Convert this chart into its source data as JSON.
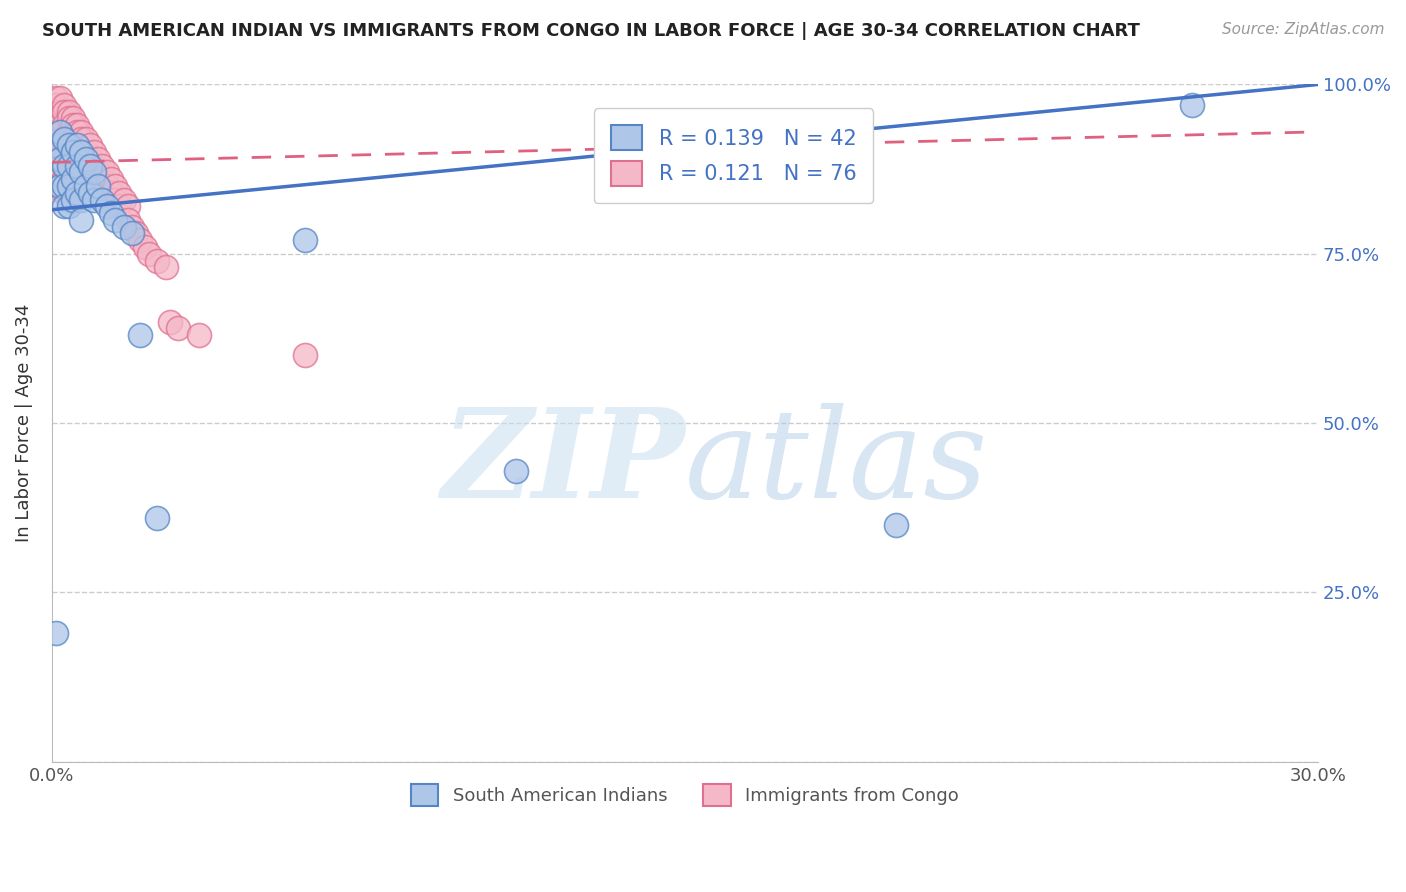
{
  "title": "SOUTH AMERICAN INDIAN VS IMMIGRANTS FROM CONGO IN LABOR FORCE | AGE 30-34 CORRELATION CHART",
  "source": "Source: ZipAtlas.com",
  "ylabel": "In Labor Force | Age 30-34",
  "xlim": [
    0.0,
    0.3
  ],
  "ylim": [
    0.0,
    1.0
  ],
  "xticks": [
    0.0,
    0.05,
    0.1,
    0.15,
    0.2,
    0.25,
    0.3
  ],
  "xtick_labels": [
    "0.0%",
    "",
    "",
    "",
    "",
    "",
    "30.0%"
  ],
  "yticks": [
    0.0,
    0.25,
    0.5,
    0.75,
    1.0
  ],
  "ytick_labels_right": [
    "",
    "25.0%",
    "50.0%",
    "75.0%",
    "100.0%"
  ],
  "blue_R": 0.139,
  "blue_N": 42,
  "pink_R": 0.121,
  "pink_N": 76,
  "blue_fill": "#aec6e8",
  "pink_fill": "#f4b8c8",
  "blue_edge": "#5585c5",
  "pink_edge": "#e07090",
  "blue_line": "#4472c4",
  "pink_line": "#e06080",
  "legend_color": "#4472c4",
  "blue_line_y0": 0.815,
  "blue_line_y1": 1.0,
  "pink_line_y0": 0.885,
  "pink_line_y1": 0.93,
  "blue_scatter_x": [
    0.001,
    0.001,
    0.002,
    0.002,
    0.002,
    0.003,
    0.003,
    0.003,
    0.003,
    0.004,
    0.004,
    0.004,
    0.004,
    0.005,
    0.005,
    0.005,
    0.006,
    0.006,
    0.006,
    0.007,
    0.007,
    0.007,
    0.007,
    0.008,
    0.008,
    0.009,
    0.009,
    0.01,
    0.01,
    0.011,
    0.012,
    0.013,
    0.014,
    0.015,
    0.017,
    0.019,
    0.021,
    0.025,
    0.06,
    0.11,
    0.2,
    0.27
  ],
  "blue_scatter_y": [
    0.19,
    0.91,
    0.93,
    0.89,
    0.85,
    0.92,
    0.88,
    0.85,
    0.82,
    0.91,
    0.88,
    0.85,
    0.82,
    0.9,
    0.86,
    0.83,
    0.91,
    0.88,
    0.84,
    0.9,
    0.87,
    0.83,
    0.8,
    0.89,
    0.85,
    0.88,
    0.84,
    0.87,
    0.83,
    0.85,
    0.83,
    0.82,
    0.81,
    0.8,
    0.79,
    0.78,
    0.63,
    0.36,
    0.77,
    0.43,
    0.35,
    0.97
  ],
  "pink_scatter_x": [
    0.001,
    0.001,
    0.001,
    0.001,
    0.001,
    0.002,
    0.002,
    0.002,
    0.002,
    0.002,
    0.002,
    0.003,
    0.003,
    0.003,
    0.003,
    0.003,
    0.003,
    0.003,
    0.003,
    0.004,
    0.004,
    0.004,
    0.004,
    0.004,
    0.004,
    0.004,
    0.004,
    0.005,
    0.005,
    0.005,
    0.005,
    0.005,
    0.005,
    0.006,
    0.006,
    0.006,
    0.006,
    0.006,
    0.007,
    0.007,
    0.007,
    0.007,
    0.008,
    0.008,
    0.008,
    0.009,
    0.009,
    0.009,
    0.01,
    0.01,
    0.011,
    0.011,
    0.012,
    0.012,
    0.013,
    0.013,
    0.014,
    0.014,
    0.015,
    0.015,
    0.016,
    0.016,
    0.017,
    0.018,
    0.018,
    0.019,
    0.02,
    0.021,
    0.022,
    0.023,
    0.025,
    0.027,
    0.028,
    0.03,
    0.035,
    0.06
  ],
  "pink_scatter_y": [
    0.98,
    0.97,
    0.95,
    0.93,
    0.91,
    0.98,
    0.96,
    0.94,
    0.92,
    0.9,
    0.88,
    0.97,
    0.96,
    0.94,
    0.92,
    0.9,
    0.88,
    0.86,
    0.84,
    0.96,
    0.95,
    0.93,
    0.91,
    0.89,
    0.87,
    0.85,
    0.83,
    0.95,
    0.94,
    0.92,
    0.9,
    0.88,
    0.86,
    0.94,
    0.93,
    0.91,
    0.89,
    0.87,
    0.93,
    0.92,
    0.9,
    0.88,
    0.92,
    0.9,
    0.88,
    0.91,
    0.89,
    0.87,
    0.9,
    0.88,
    0.89,
    0.87,
    0.88,
    0.86,
    0.87,
    0.85,
    0.86,
    0.84,
    0.85,
    0.83,
    0.84,
    0.82,
    0.83,
    0.82,
    0.8,
    0.79,
    0.78,
    0.77,
    0.76,
    0.75,
    0.74,
    0.73,
    0.65,
    0.64,
    0.63,
    0.6
  ]
}
